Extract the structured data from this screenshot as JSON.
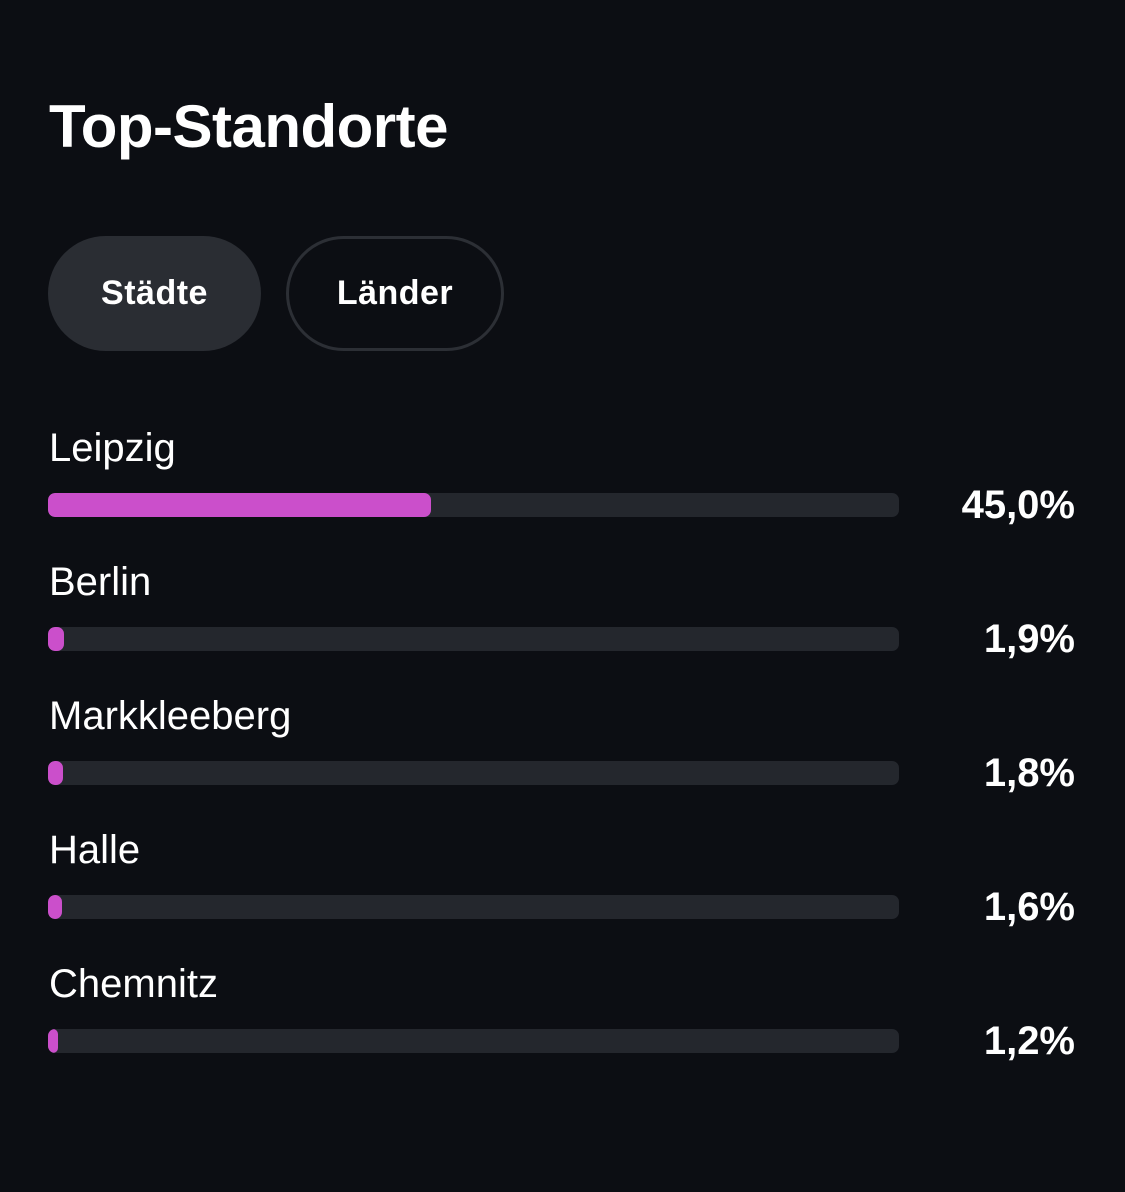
{
  "header": {
    "title": "Top-Standorte"
  },
  "tabs": [
    {
      "label": "Städte",
      "active": true
    },
    {
      "label": "Länder",
      "active": false
    }
  ],
  "colors": {
    "background": "#0c0e13",
    "bar_fill": "#cb4fcb",
    "bar_track": "#24272d",
    "tab_active_bg": "#2a2d33"
  },
  "locations": [
    {
      "name": "Leipzig",
      "percent_label": "45,0%",
      "value": 45.0
    },
    {
      "name": "Berlin",
      "percent_label": "1,9%",
      "value": 1.9
    },
    {
      "name": "Markkleeberg",
      "percent_label": "1,8%",
      "value": 1.8
    },
    {
      "name": "Halle",
      "percent_label": "1,6%",
      "value": 1.6
    },
    {
      "name": "Chemnitz",
      "percent_label": "1,2%",
      "value": 1.2
    }
  ]
}
